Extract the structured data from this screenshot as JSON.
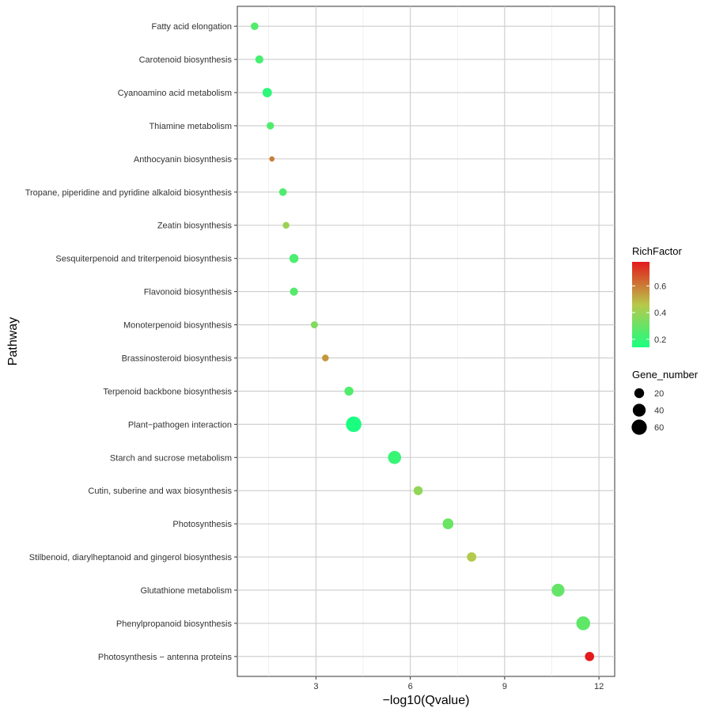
{
  "chart_data": {
    "type": "scatter",
    "xlabel": "−log10(Qvalue)",
    "ylabel": "Pathway",
    "xlim": [
      0.5,
      12.5
    ],
    "x_ticks": [
      "3",
      "6",
      "9",
      "12"
    ],
    "grid": true,
    "legend_placement": "right",
    "color_legend": {
      "title": "RichFactor",
      "ticks": [
        "0.2",
        "0.4",
        "0.6"
      ],
      "range": [
        0.14,
        0.78
      ],
      "low_color": "#1aff80",
      "mid_color": "#b8c84a",
      "high_color": "#e41a1c"
    },
    "size_legend": {
      "title": "Gene_number",
      "labels": [
        "20",
        "40",
        "60"
      ],
      "values": [
        20,
        40,
        60
      ]
    },
    "points": [
      {
        "pathway": "Fatty acid elongation",
        "x": 1.05,
        "rich_factor": 0.25,
        "gene_number": 10
      },
      {
        "pathway": "Carotenoid biosynthesis",
        "x": 1.2,
        "rich_factor": 0.23,
        "gene_number": 12
      },
      {
        "pathway": "Cyanoamino acid metabolism",
        "x": 1.45,
        "rich_factor": 0.18,
        "gene_number": 18
      },
      {
        "pathway": "Thiamine metabolism",
        "x": 1.55,
        "rich_factor": 0.25,
        "gene_number": 9
      },
      {
        "pathway": "Anthocyanin biosynthesis",
        "x": 1.6,
        "rich_factor": 0.6,
        "gene_number": 3
      },
      {
        "pathway": "Tropane, piperidine and pyridine alkaloid biosynthesis",
        "x": 1.95,
        "rich_factor": 0.25,
        "gene_number": 10
      },
      {
        "pathway": "Zeatin biosynthesis",
        "x": 2.05,
        "rich_factor": 0.4,
        "gene_number": 7
      },
      {
        "pathway": "Sesquiterpenoid and triterpenoid biosynthesis",
        "x": 2.3,
        "rich_factor": 0.24,
        "gene_number": 16
      },
      {
        "pathway": "Flavonoid biosynthesis",
        "x": 2.3,
        "rich_factor": 0.26,
        "gene_number": 12
      },
      {
        "pathway": "Monoterpenoid biosynthesis",
        "x": 2.95,
        "rich_factor": 0.35,
        "gene_number": 8
      },
      {
        "pathway": "Brassinosteroid biosynthesis",
        "x": 3.3,
        "rich_factor": 0.55,
        "gene_number": 7
      },
      {
        "pathway": "Terpenoid backbone biosynthesis",
        "x": 4.05,
        "rich_factor": 0.25,
        "gene_number": 16
      },
      {
        "pathway": "Plant−pathogen interaction",
        "x": 4.2,
        "rich_factor": 0.14,
        "gene_number": 62
      },
      {
        "pathway": "Starch and sucrose metabolism",
        "x": 5.5,
        "rich_factor": 0.2,
        "gene_number": 42
      },
      {
        "pathway": "Cutin, suberine and wax biosynthesis",
        "x": 6.25,
        "rich_factor": 0.38,
        "gene_number": 16
      },
      {
        "pathway": "Photosynthesis",
        "x": 7.2,
        "rich_factor": 0.3,
        "gene_number": 26
      },
      {
        "pathway": "Stilbenoid, diarylheptanoid and gingerol biosynthesis",
        "x": 7.95,
        "rich_factor": 0.45,
        "gene_number": 18
      },
      {
        "pathway": "Glutathione metabolism",
        "x": 10.7,
        "rich_factor": 0.29,
        "gene_number": 40
      },
      {
        "pathway": "Phenylpropanoid biosynthesis",
        "x": 11.5,
        "rich_factor": 0.28,
        "gene_number": 48
      },
      {
        "pathway": "Photosynthesis − antenna proteins",
        "x": 11.7,
        "rich_factor": 0.78,
        "gene_number": 17
      }
    ]
  }
}
